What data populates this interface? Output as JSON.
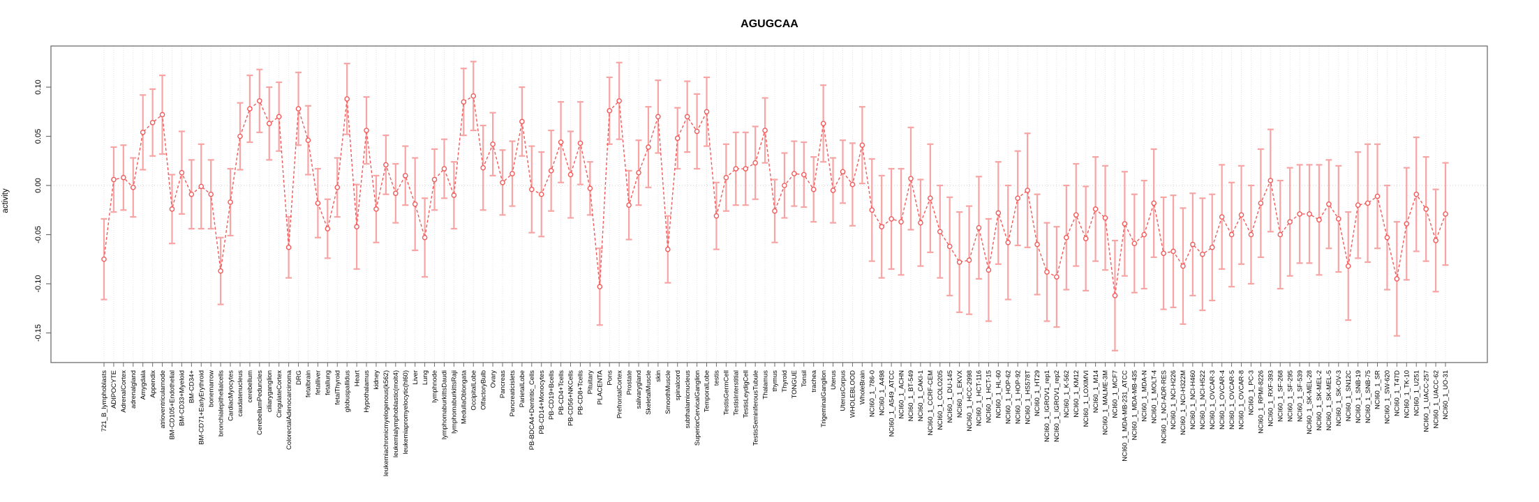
{
  "chart_data": {
    "type": "line",
    "title": "AGUGCAA",
    "xlabel": "",
    "ylabel": "activity",
    "ylim": [
      -0.18,
      0.142
    ],
    "yticks": [
      0.1,
      0.05,
      0.0,
      -0.05,
      -0.1,
      -0.15
    ],
    "grid": "vertical dotted gridline per category, dotted horizontal line at zero",
    "legend": "none",
    "series_color": "#f25959",
    "errorbar_color": "#f7a4a4",
    "gridline_color": "#dedede",
    "zeroline_color": "#cccccc",
    "axis_color": "#6e6e6e",
    "marker": "open-circle",
    "line_style": "dashed",
    "categories": [
      "721_B_lymphoblasts",
      "ADIPOCYTE",
      "AdrenalCortex",
      "adrenalgland",
      "Amygdala",
      "Appendix",
      "atrioventricularnode",
      "BM-CD105+Endothelial",
      "BM-CD33+Myeloid",
      "BM-CD34+",
      "BM-CD71+EarlyErythroid",
      "bonemarrow",
      "bronchialepithelialcells",
      "CardiacMyocytes",
      "caudatenucleus",
      "cerebellum",
      "CerebellumPeduncles",
      "ciliaryganglion",
      "CingulateCortex",
      "ColorectalAdenocarcinoma",
      "DRG",
      "fetalbrain",
      "fetalliver",
      "fetallung",
      "fetalThyroid",
      "globuspallidus",
      "Heart",
      "Hypothalamus",
      "kidney",
      "leukemiachronicmyelogenous(k562)",
      "leukemialymphoblastic(molt4)",
      "leukemiapromyelocytic(hl60)",
      "Liver",
      "Lung",
      "lymphnode",
      "lymphomaburkittsDaudi",
      "lymphomaburkittsRaji",
      "MedullaOblongata",
      "OccipitalLobe",
      "OlfactoryBulb",
      "Ovary",
      "Pancreas",
      "Pancreaticislets",
      "ParietalLobe",
      "PB-BDCA4+Dentritic_Cells",
      "PB-CD14+Monocytes",
      "PB-CD19+Bcells",
      "PB-CD4+Tcells",
      "PB-CD56+NKCells",
      "PB-CD8+Tcells",
      "Pituitary",
      "PLACENTA",
      "Pons",
      "PrefrontalCortex",
      "Prostate",
      "salivarygland",
      "SkeletalMuscle",
      "skin",
      "SmoothMuscle",
      "spinalcord",
      "subthalamicnucleus",
      "SuperiorCervicalGanglion",
      "TemporalLobe",
      "testis",
      "TestisGermCell",
      "TestisInterstitial",
      "TestisLeydigCell",
      "TestisSeminiferousTubule",
      "Thalamus",
      "thymus",
      "Thyroid",
      "TONGUE",
      "Tonsil",
      "trachea",
      "TrigeminalGanglion",
      "Uterus",
      "UterusCorpus",
      "WHOLEBLOOD",
      "WholeBrain",
      "NCI60_1_786-0",
      "NCI60_1_A498",
      "NCI60_1_A549_ATCC",
      "NCI60_1_ACHN",
      "NCI60_1_BT-549",
      "NCI60_1_CAKI-1",
      "NCI60_1_CCRF-CEM",
      "NCI60_1_COLO205",
      "NCI60_1_DU-145",
      "NCI60_1_EKVX",
      "NCI60_1_HCC-2998",
      "NCI60_1_HCT-116",
      "NCI60_1_HCT-15",
      "NCI60_1_HL-60",
      "NCI60_1_HOP-62",
      "NCI60_1_HOP-92",
      "NCI60_1_HS578T",
      "NCI60_1_HT29",
      "NCI60_1_IGROV1_rep1",
      "NCI60_1_IGROV1_rep2",
      "NCI60_1_K-562",
      "NCI60_1_KM12",
      "NCI60_1_LOXIMVI",
      "NCI60_1_M14",
      "NCI60_1_MALME-3M",
      "NCI60_1_MCF7",
      "NCI60_1_MDA-MB-231_ATCC",
      "NCI60_1_MDA-MB-435",
      "NCI60_1_MDA-N",
      "NCI60_1_MOLT-4",
      "NCI60_1_NCI-ADR-RES",
      "NCI60_1_NCI-H226",
      "NCI60_1_NCI-H322M",
      "NCI60_1_NCI-H460",
      "NCI60_1_NCI-H522",
      "NCI60_1_OVCAR-3",
      "NCI60_1_OVCAR-4",
      "NCI60_1_OVCAR-5",
      "NCI60_1_OVCAR-8",
      "NCI60_1_PC-3",
      "NCI60_1_RPMI-8226",
      "NCI60_1_RXF-393",
      "NCI60_1_SF-268",
      "NCI60_1_SF-295",
      "NCI60_1_SF-539",
      "NCI60_1_SK-MEL-28",
      "NCI60_1_SK-MEL-2",
      "NCI60_1_SK-MEL-5",
      "NCI60_1_SK-OV-3",
      "NCI60_1_SN12C",
      "NCI60_1_SNB-19",
      "NCI60_1_SNB-75",
      "NCI60_1_SR",
      "NCI60_1_SW-620",
      "NCI60_1_T47D",
      "NCI60_1_TK-10",
      "NCI60_1_U251",
      "NCI60_1_UACC-257",
      "NCI60_1_UACC-62",
      "NCI60_1_UO-31"
    ],
    "values": [
      -0.075,
      0.006,
      0.008,
      -0.002,
      0.054,
      0.064,
      0.072,
      -0.024,
      0.013,
      -0.009,
      -0.001,
      -0.009,
      -0.087,
      -0.017,
      0.05,
      0.078,
      0.086,
      0.063,
      0.07,
      -0.063,
      0.078,
      0.046,
      -0.018,
      -0.044,
      -0.002,
      0.088,
      -0.042,
      0.056,
      -0.024,
      0.021,
      -0.008,
      0.01,
      -0.019,
      -0.053,
      0.006,
      0.017,
      -0.01,
      0.085,
      0.091,
      0.018,
      0.042,
      0.003,
      0.012,
      0.065,
      -0.004,
      -0.009,
      0.015,
      0.044,
      0.011,
      0.043,
      -0.003,
      -0.103,
      0.076,
      0.086,
      -0.02,
      0.013,
      0.039,
      0.07,
      -0.065,
      0.048,
      0.07,
      0.055,
      0.075,
      -0.031,
      0.008,
      0.017,
      0.017,
      0.023,
      0.056,
      -0.026,
      0,
      0.012,
      0.011,
      -0.004,
      0.063,
      -0.005,
      0.014,
      0.001,
      0.041,
      -0.025,
      -0.042,
      -0.034,
      -0.037,
      0.007,
      -0.038,
      -0.013,
      -0.047,
      -0.062,
      -0.078,
      -0.076,
      -0.043,
      -0.086,
      -0.028,
      -0.058,
      -0.013,
      -0.005,
      -0.06,
      -0.088,
      -0.093,
      -0.053,
      -0.03,
      -0.054,
      -0.024,
      -0.033,
      -0.112,
      -0.039,
      -0.059,
      -0.05,
      -0.018,
      -0.069,
      -0.067,
      -0.082,
      -0.06,
      -0.07,
      -0.063,
      -0.032,
      -0.05,
      -0.03,
      -0.05,
      -0.018,
      0.005,
      -0.05,
      -0.037,
      -0.029,
      -0.029,
      -0.035,
      -0.019,
      -0.034,
      -0.082,
      -0.02,
      -0.018,
      -0.011,
      -0.053,
      -0.095,
      -0.039,
      -0.009,
      -0.024,
      -0.056,
      -0.029
    ],
    "errors": [
      0.041,
      0.033,
      0.033,
      0.03,
      0.038,
      0.034,
      0.04,
      0.035,
      0.042,
      0.035,
      0.043,
      0.035,
      0.034,
      0.034,
      0.034,
      0.034,
      0.032,
      0.037,
      0.035,
      0.031,
      0.037,
      0.035,
      0.035,
      0.03,
      0.03,
      0.036,
      0.043,
      0.034,
      0.034,
      0.03,
      0.03,
      0.03,
      0.047,
      0.04,
      0.031,
      0.03,
      0.034,
      0.034,
      0.035,
      0.043,
      0.032,
      0.033,
      0.033,
      0.035,
      0.044,
      0.043,
      0.041,
      0.041,
      0.044,
      0.042,
      0.027,
      0.039,
      0.034,
      0.039,
      0.035,
      0.033,
      0.041,
      0.037,
      0.034,
      0.031,
      0.036,
      0.038,
      0.035,
      0.034,
      0.034,
      0.037,
      0.037,
      0.037,
      0.033,
      0.032,
      0.033,
      0.033,
      0.033,
      0.033,
      0.039,
      0.033,
      0.032,
      0.042,
      0.039,
      0.052,
      0.052,
      0.051,
      0.054,
      0.052,
      0.044,
      0.055,
      0.047,
      0.05,
      0.051,
      0.055,
      0.052,
      0.052,
      0.052,
      0.058,
      0.048,
      0.058,
      0.051,
      0.05,
      0.051,
      0.053,
      0.052,
      0.053,
      0.053,
      0.053,
      0.056,
      0.053,
      0.05,
      0.055,
      0.055,
      0.057,
      0.057,
      0.059,
      0.052,
      0.057,
      0.054,
      0.053,
      0.053,
      0.05,
      0.05,
      0.055,
      0.052,
      0.055,
      0.055,
      0.05,
      0.05,
      0.056,
      0.045,
      0.054,
      0.055,
      0.054,
      0.06,
      0.053,
      0.053,
      0.058,
      0.057,
      0.058,
      0.053,
      0.052,
      0.052
    ]
  }
}
